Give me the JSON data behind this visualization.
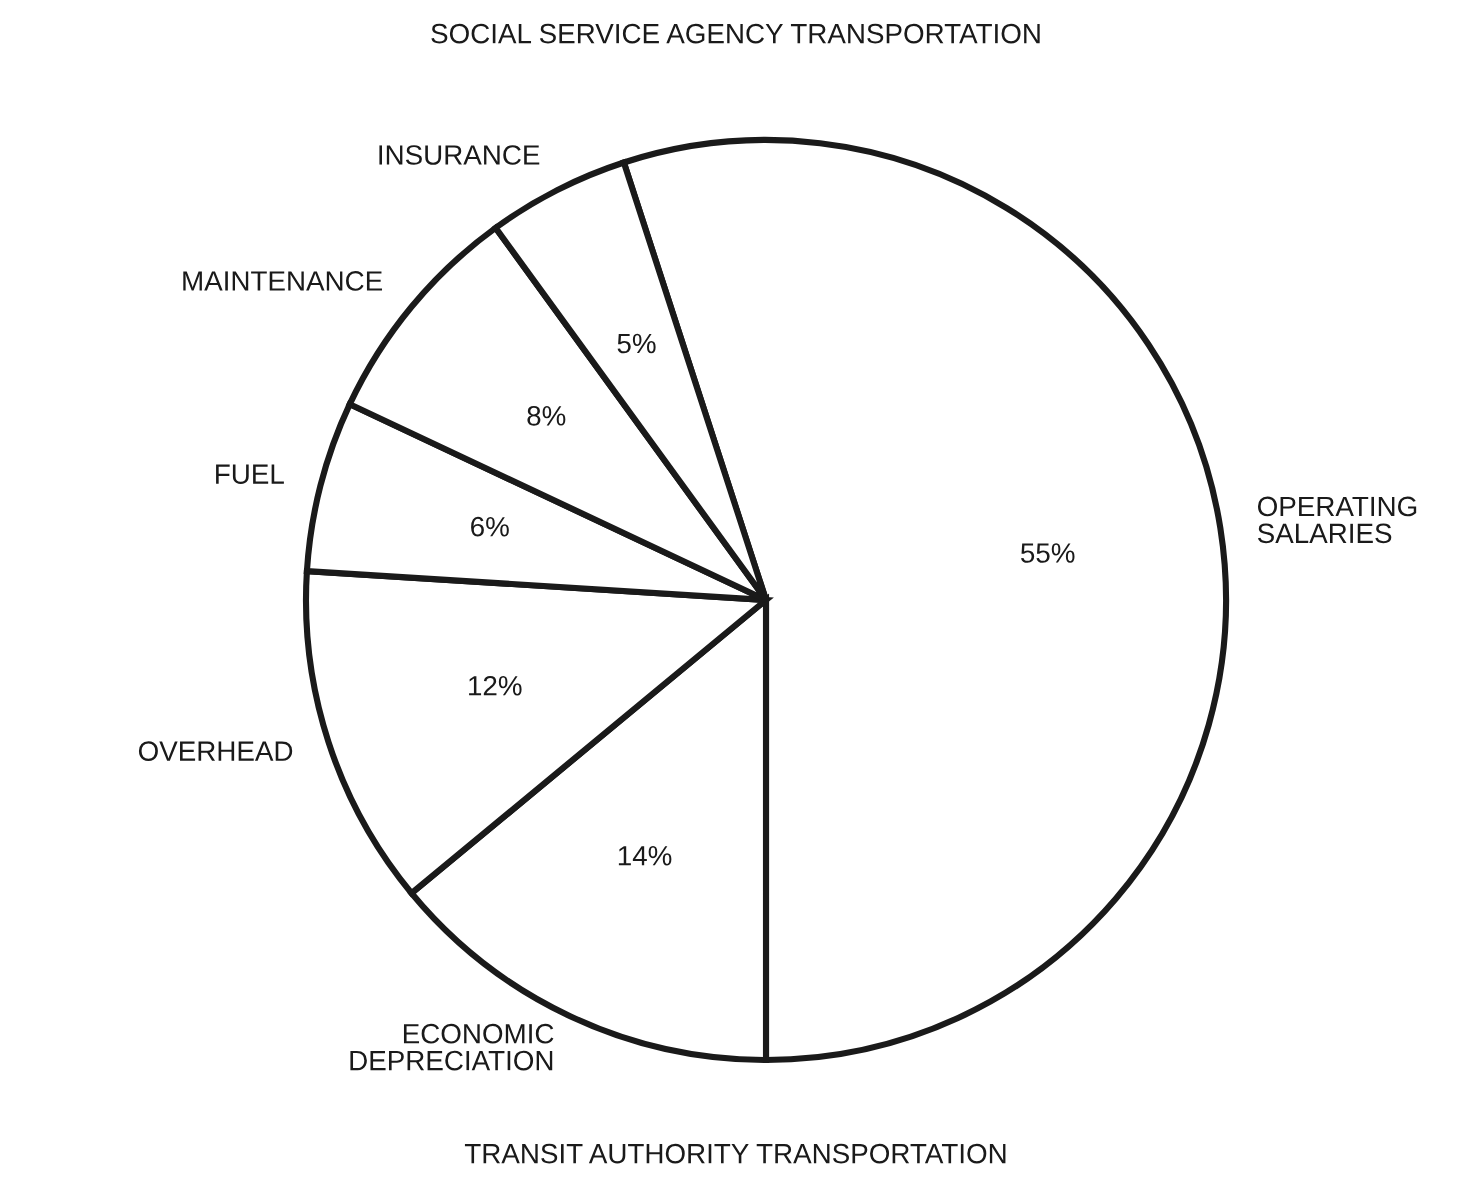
{
  "chart_data": {
    "type": "pie",
    "title": "SOCIAL SERVICE AGENCY TRANSPORTATION",
    "categories": [
      "OPERATING\nSALARIES",
      "ECONOMIC\nDEPRECIATION",
      "OVERHEAD",
      "FUEL",
      "MAINTENANCE",
      "INSURANCE"
    ],
    "values": [
      55,
      14,
      12,
      6,
      8,
      5
    ],
    "colors": [
      "#ffffff",
      "#ffffff",
      "#ffffff",
      "#ffffff",
      "#ffffff",
      "#ffffff"
    ],
    "value_labels": [
      "55%",
      "14%",
      "12%",
      "6%",
      "8%",
      "5%"
    ],
    "annotations": [
      "TRANSIT AUTHORITY TRANSPORTATION"
    ]
  }
}
